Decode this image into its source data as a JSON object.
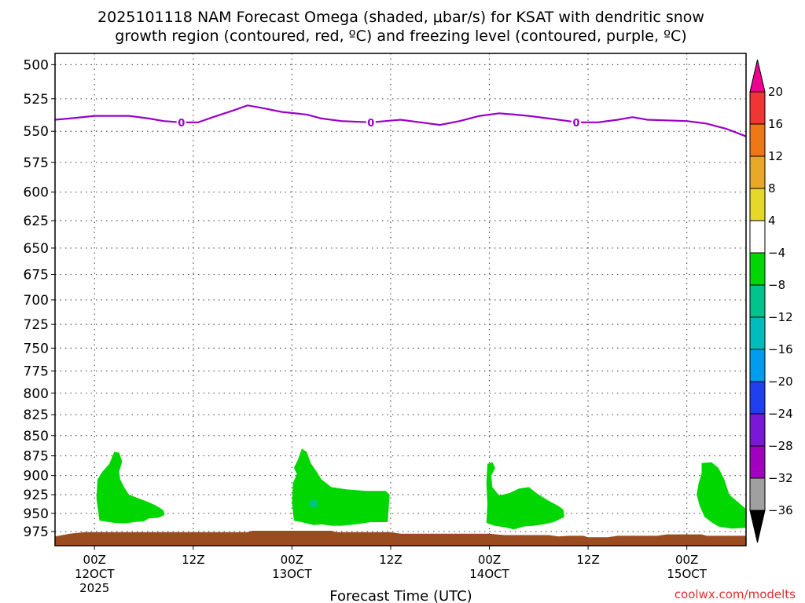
{
  "chart_data": {
    "type": "time-height",
    "title_line1": "2025101118 NAM Forecast Omega (shaded, μbar/s) for KSAT with dendritic snow",
    "title_line2": "growth region (contoured, red, ºC) and freezing level (contoured, purple, ºC)",
    "xlabel": "Forecast Time (UTC)",
    "credit": "coolwx.com/modelts",
    "x_range_hours": [
      -4,
      66
    ],
    "y_range_mb": [
      492,
      995
    ],
    "y_ticks": [
      500,
      525,
      550,
      575,
      600,
      625,
      650,
      675,
      700,
      725,
      750,
      775,
      800,
      825,
      850,
      875,
      900,
      925,
      950,
      975
    ],
    "x_ticks": [
      {
        "h": 0,
        "label": "00Z",
        "date": "12OCT",
        "year": "2025"
      },
      {
        "h": 10,
        "label": "12Z",
        "date": "",
        "year": ""
      },
      {
        "h": 20,
        "label": "00Z",
        "date": "13OCT",
        "year": ""
      },
      {
        "h": 30,
        "label": "12Z",
        "date": "",
        "year": ""
      },
      {
        "h": 40,
        "label": "00Z",
        "date": "14OCT",
        "year": ""
      },
      {
        "h": 50,
        "label": "12Z",
        "date": "",
        "year": ""
      },
      {
        "h": 60,
        "label": "00Z",
        "date": "15OCT",
        "year": ""
      }
    ],
    "freezing_level": {
      "color": "#9a00c9",
      "label": "0",
      "label_hours": [
        8.8,
        28.0,
        48.8
      ],
      "points": [
        [
          -4,
          541
        ],
        [
          -2.5,
          540
        ],
        [
          0,
          538
        ],
        [
          3.5,
          538
        ],
        [
          5.5,
          540
        ],
        [
          7,
          542
        ],
        [
          8.8,
          543
        ],
        [
          10.5,
          543
        ],
        [
          12,
          539
        ],
        [
          14,
          534
        ],
        [
          15.5,
          530
        ],
        [
          17,
          532
        ],
        [
          19,
          535
        ],
        [
          21.5,
          537
        ],
        [
          23,
          540
        ],
        [
          25,
          542
        ],
        [
          28,
          543
        ],
        [
          31,
          541
        ],
        [
          33,
          543
        ],
        [
          35,
          545
        ],
        [
          37,
          542
        ],
        [
          39,
          538
        ],
        [
          41,
          536
        ],
        [
          42.5,
          537
        ],
        [
          44,
          538
        ],
        [
          46,
          540
        ],
        [
          48,
          542
        ],
        [
          48.8,
          543
        ],
        [
          51,
          543
        ],
        [
          53,
          541
        ],
        [
          54.5,
          539
        ],
        [
          56,
          541
        ],
        [
          60,
          542
        ],
        [
          62,
          544
        ],
        [
          64,
          548
        ],
        [
          66,
          554
        ]
      ]
    },
    "omega_regions": [
      {
        "value": -6,
        "color": "#00d600",
        "points": [
          [
            2.0,
            870
          ],
          [
            2.5,
            871
          ],
          [
            2.8,
            882
          ],
          [
            2.5,
            895
          ],
          [
            2.6,
            905
          ],
          [
            3.0,
            915
          ],
          [
            3.5,
            925
          ],
          [
            4.5,
            930
          ],
          [
            5.5,
            935
          ],
          [
            6.3,
            940
          ],
          [
            7.0,
            946
          ],
          [
            7.1,
            952
          ],
          [
            6.5,
            956
          ],
          [
            5.5,
            957
          ],
          [
            5.0,
            961
          ],
          [
            4.0,
            962
          ],
          [
            3.0,
            964
          ],
          [
            2.0,
            963
          ],
          [
            0.5,
            960
          ],
          [
            0.2,
            930
          ],
          [
            0.3,
            905
          ],
          [
            0.8,
            895
          ],
          [
            1.5,
            885
          ]
        ]
      },
      {
        "value": -6,
        "color": "#00d600",
        "points": [
          [
            21.0,
            866
          ],
          [
            21.5,
            870
          ],
          [
            21.9,
            884
          ],
          [
            22.5,
            895
          ],
          [
            23.0,
            905
          ],
          [
            24.0,
            915
          ],
          [
            25.5,
            918
          ],
          [
            27.5,
            920
          ],
          [
            29.5,
            920
          ],
          [
            29.9,
            925
          ],
          [
            29.7,
            962
          ],
          [
            28.0,
            962
          ],
          [
            26.5,
            965
          ],
          [
            25.0,
            967
          ],
          [
            24.0,
            967
          ],
          [
            23.0,
            965
          ],
          [
            22.2,
            966
          ],
          [
            21.0,
            962
          ],
          [
            20.2,
            960
          ],
          [
            20.0,
            935
          ],
          [
            20.1,
            910
          ],
          [
            20.5,
            898
          ],
          [
            20.2,
            890
          ],
          [
            20.6,
            880
          ]
        ]
      },
      {
        "value": -6,
        "color": "#00d600",
        "points": [
          [
            39.8,
            885
          ],
          [
            40.3,
            883
          ],
          [
            40.6,
            890
          ],
          [
            40.2,
            900
          ],
          [
            40.3,
            915
          ],
          [
            41.0,
            926
          ],
          [
            42.0,
            923
          ],
          [
            43.0,
            917
          ],
          [
            44.0,
            915
          ],
          [
            45.0,
            925
          ],
          [
            46.0,
            933
          ],
          [
            47.0,
            940
          ],
          [
            47.5,
            945
          ],
          [
            47.6,
            955
          ],
          [
            46.5,
            962
          ],
          [
            45.5,
            965
          ],
          [
            44.5,
            967
          ],
          [
            43.5,
            968
          ],
          [
            42.5,
            972
          ],
          [
            41.5,
            969
          ],
          [
            40.5,
            967
          ],
          [
            39.7,
            963
          ],
          [
            39.8,
            938
          ],
          [
            39.7,
            910
          ]
        ]
      },
      {
        "value": -6,
        "color": "#00d600",
        "points": [
          [
            61.5,
            884
          ],
          [
            62.5,
            883
          ],
          [
            63.2,
            890
          ],
          [
            63.8,
            905
          ],
          [
            64.3,
            925
          ],
          [
            65.2,
            935
          ],
          [
            66.0,
            944
          ],
          [
            66.0,
            970
          ],
          [
            64.5,
            971
          ],
          [
            63.2,
            968
          ],
          [
            62.5,
            962
          ],
          [
            61.8,
            955
          ],
          [
            61.3,
            940
          ],
          [
            61.0,
            925
          ],
          [
            61.2,
            910
          ],
          [
            61.5,
            897
          ]
        ]
      },
      {
        "value": -10,
        "color": "#00c48c",
        "points": [
          [
            21.8,
            933
          ],
          [
            22.5,
            932
          ],
          [
            22.6,
            941
          ],
          [
            21.8,
            942
          ]
        ]
      }
    ],
    "terrain": {
      "color": "#9a4c20",
      "surface_points": [
        [
          -4,
          982
        ],
        [
          -2.5,
          978
        ],
        [
          -1,
          976
        ],
        [
          15.5,
          976
        ],
        [
          16,
          974
        ],
        [
          24,
          974
        ],
        [
          24.5,
          976
        ],
        [
          30,
          976
        ],
        [
          31,
          978
        ],
        [
          40,
          978
        ],
        [
          41.5,
          980
        ],
        [
          46,
          980
        ],
        [
          47,
          982
        ],
        [
          48,
          981
        ],
        [
          49.5,
          981
        ],
        [
          50,
          983
        ],
        [
          52,
          983
        ],
        [
          53,
          981
        ],
        [
          57,
          981
        ],
        [
          58,
          979
        ],
        [
          61.5,
          979
        ],
        [
          62,
          981
        ],
        [
          66,
          981
        ]
      ]
    },
    "colorbar": [
      {
        "label": "",
        "color": "#ee0090",
        "triangle": true
      },
      {
        "label": "20",
        "color": "#f03535"
      },
      {
        "label": "16",
        "color": "#f07814"
      },
      {
        "label": "12",
        "color": "#e8a828"
      },
      {
        "label": "8",
        "color": "#e6d828"
      },
      {
        "label": "4",
        "color": "#ffffff"
      },
      {
        "label": "−4",
        "color": "#00d600"
      },
      {
        "label": "−8",
        "color": "#00c48c"
      },
      {
        "label": "−12",
        "color": "#00bcbc"
      },
      {
        "label": "−16",
        "color": "#009cf0"
      },
      {
        "label": "−20",
        "color": "#2040f0"
      },
      {
        "label": "−24",
        "color": "#7a18d8"
      },
      {
        "label": "−28",
        "color": "#a000c0"
      },
      {
        "label": "−32",
        "color": "#a0a0a0"
      },
      {
        "label": "−36",
        "color": "#000000",
        "triangle": true
      }
    ]
  }
}
